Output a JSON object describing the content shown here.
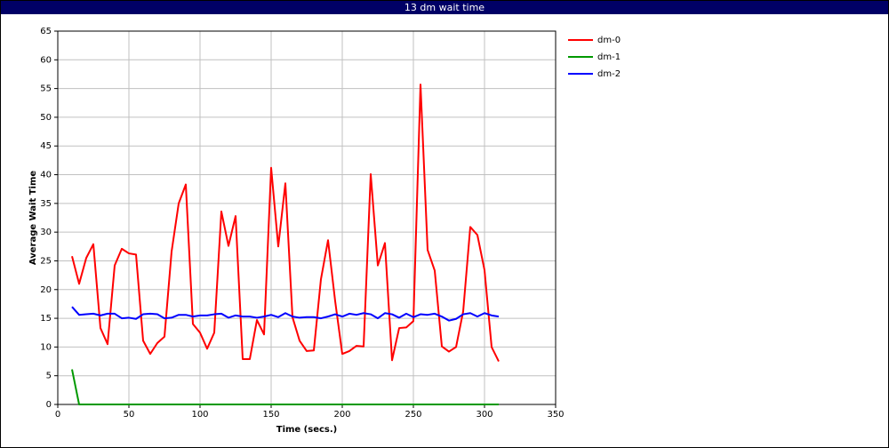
{
  "chart_data": {
    "type": "line",
    "title": "13 dm wait time",
    "x_label": "Time (secs.)",
    "y_label": "Average Wait Time",
    "x": [
      10,
      15,
      20,
      25,
      30,
      35,
      40,
      45,
      50,
      55,
      60,
      65,
      70,
      75,
      80,
      85,
      90,
      95,
      100,
      105,
      110,
      115,
      120,
      125,
      130,
      135,
      140,
      145,
      150,
      155,
      160,
      165,
      170,
      175,
      180,
      185,
      190,
      195,
      200,
      205,
      210,
      215,
      220,
      225,
      230,
      235,
      240,
      245,
      250,
      255,
      260,
      265,
      270,
      275,
      280,
      285,
      290,
      295,
      300,
      305,
      310
    ],
    "series": [
      {
        "name": "dm-0",
        "color": "#ff0000",
        "values": [
          25.8,
          21,
          25.5,
          27.9,
          13.3,
          10.5,
          24.2,
          27.1,
          26.3,
          26.1,
          11.1,
          8.8,
          10.7,
          11.8,
          26.6,
          35,
          38.3,
          14,
          12.5,
          9.7,
          12.5,
          33.6,
          27.6,
          32.8,
          7.9,
          7.9,
          14.7,
          12.2,
          41.2,
          27.5,
          38.5,
          15.2,
          11.1,
          9.3,
          9.4,
          21.8,
          28.6,
          18,
          8.8,
          9.3,
          10.2,
          10.1,
          40.1,
          24.2,
          28.1,
          7.7,
          13.3,
          13.4,
          14.5,
          55.7,
          26.9,
          23.3,
          10.1,
          9.2,
          10,
          16.2,
          30.9,
          29.5,
          23.4,
          10,
          7.5
        ]
      },
      {
        "name": "dm-1",
        "color": "#009900",
        "values": [
          6.1,
          0,
          0,
          0,
          0,
          0,
          0,
          0,
          0,
          0,
          0,
          0,
          0,
          0,
          0,
          0,
          0,
          0,
          0,
          0,
          0,
          0,
          0,
          0,
          0,
          0,
          0,
          0,
          0,
          0,
          0,
          0,
          0,
          0,
          0,
          0,
          0,
          0,
          0,
          0,
          0,
          0,
          0,
          0,
          0,
          0,
          0,
          0,
          0,
          0,
          0,
          0,
          0,
          0,
          0,
          0,
          0,
          0,
          0,
          0,
          0
        ]
      },
      {
        "name": "dm-2",
        "color": "#0000ff",
        "values": [
          17,
          15.6,
          15.7,
          15.8,
          15.5,
          15.8,
          15.8,
          15,
          15.1,
          14.9,
          15.7,
          15.8,
          15.7,
          15,
          15.1,
          15.6,
          15.6,
          15.3,
          15.5,
          15.5,
          15.7,
          15.8,
          15.1,
          15.5,
          15.3,
          15.3,
          15.1,
          15.3,
          15.6,
          15.2,
          15.9,
          15.3,
          15.1,
          15.2,
          15.2,
          15,
          15.3,
          15.7,
          15.3,
          15.8,
          15.6,
          15.9,
          15.7,
          15,
          15.9,
          15.7,
          15.1,
          15.8,
          15.2,
          15.7,
          15.6,
          15.8,
          15.3,
          14.6,
          14.9,
          15.7,
          15.9,
          15.3,
          15.9,
          15.5,
          15.3
        ]
      }
    ],
    "xlim": [
      0,
      350
    ],
    "xticks": [
      0,
      50,
      100,
      150,
      200,
      250,
      300,
      350
    ],
    "ylim": [
      0,
      65
    ],
    "yticks": [
      0,
      5,
      10,
      15,
      20,
      25,
      30,
      35,
      40,
      45,
      50,
      55,
      60,
      65
    ],
    "grid": true,
    "legend": "right"
  }
}
